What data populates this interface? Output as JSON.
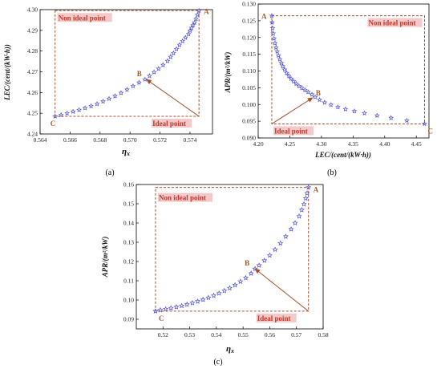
{
  "chart_data": [
    {
      "panel": "(a)",
      "type": "scatter",
      "title": "",
      "xlabel": "ηx",
      "ylabel": "LEC/(cent/(kW·h))",
      "xlim": [
        0.564,
        0.5755
      ],
      "ylim": [
        4.24,
        4.3
      ],
      "xticks": [
        "0.564",
        "0.566",
        "0.568",
        "0.570",
        "0.572",
        "0.574"
      ],
      "yticks": [
        "4.24",
        "4.25",
        "4.26",
        "4.27",
        "4.28",
        "4.29",
        "4.30"
      ],
      "marker": "star",
      "marker_color": "#4a4ad6",
      "frame_color": "#a0522d",
      "arrow_color": "#a0522d",
      "corner_labels": {
        "A": "A",
        "B": "B",
        "C": "C"
      },
      "non_ideal_label": "Non ideal point",
      "ideal_label": "Ideal point",
      "ideal_point": [
        0.5746,
        4.2485
      ],
      "point_B": [
        0.5711,
        4.2663
      ],
      "A": [
        0.5746,
        4.2995
      ],
      "C": [
        0.565,
        4.2485
      ],
      "x": [
        0.565,
        0.5654,
        0.5658,
        0.5662,
        0.5666,
        0.567,
        0.5674,
        0.5678,
        0.5682,
        0.5686,
        0.569,
        0.5694,
        0.5698,
        0.5702,
        0.5706,
        0.571,
        0.5713,
        0.5716,
        0.5719,
        0.5722,
        0.5725,
        0.5727,
        0.5729,
        0.5731,
        0.5733,
        0.5735,
        0.5737,
        0.5739,
        0.574,
        0.5741,
        0.5742,
        0.5743,
        0.5744,
        0.5745,
        0.5746
      ],
      "y": [
        4.2485,
        4.2492,
        4.25,
        4.2508,
        4.2516,
        4.2525,
        4.2535,
        4.2545,
        4.2557,
        4.257,
        4.2583,
        4.2598,
        4.2614,
        4.2631,
        4.2648,
        4.2663,
        4.268,
        4.2698,
        4.2715,
        4.2733,
        4.2752,
        4.2772,
        4.279,
        4.281,
        4.283,
        4.2848,
        4.2865,
        4.2882,
        4.2898,
        4.2912,
        4.2925,
        4.2938,
        4.2955,
        4.2975,
        4.2995
      ]
    },
    {
      "panel": "(b)",
      "type": "scatter",
      "title": "",
      "xlabel": "LEC/(cent/(kW·h))",
      "ylabel": "APR/(m²/kW)",
      "xlim": [
        4.2,
        4.47
      ],
      "ylim": [
        0.09,
        0.13
      ],
      "xticks": [
        "4.20",
        "4.25",
        "4.30",
        "4.35",
        "4.40",
        "4.45"
      ],
      "yticks": [
        "0.090",
        "0.095",
        "0.100",
        "0.105",
        "0.110",
        "0.115",
        "0.120",
        "0.125",
        "0.130"
      ],
      "marker": "star",
      "marker_color": "#4a4ad6",
      "frame_color": "#a0522d",
      "arrow_color": "#a0522d",
      "corner_labels": {
        "A": "A",
        "B": "B",
        "C": "C"
      },
      "non_ideal_label": "Non ideal point",
      "ideal_label": "Ideal point",
      "ideal_point": [
        4.2215,
        0.0942
      ],
      "point_B": [
        4.286,
        0.102
      ],
      "A": [
        4.2215,
        0.1265
      ],
      "C": [
        4.463,
        0.0942
      ],
      "x": [
        4.2215,
        4.222,
        4.2228,
        4.2238,
        4.225,
        4.2265,
        4.2282,
        4.23,
        4.232,
        4.2342,
        4.2365,
        4.239,
        4.2418,
        4.245,
        4.2485,
        4.252,
        4.256,
        4.26,
        4.2645,
        4.269,
        4.274,
        4.279,
        4.285,
        4.29,
        4.297,
        4.305,
        4.315,
        4.326,
        4.338,
        4.352,
        4.368,
        4.388,
        4.41,
        4.435,
        4.463
      ],
      "y": [
        0.1265,
        0.1245,
        0.1228,
        0.1212,
        0.1197,
        0.1183,
        0.117,
        0.1158,
        0.1146,
        0.1135,
        0.1124,
        0.1114,
        0.1104,
        0.1094,
        0.1085,
        0.1077,
        0.1069,
        0.1062,
        0.1055,
        0.1049,
        0.1043,
        0.1037,
        0.103,
        0.1022,
        0.1014,
        0.1006,
        0.0999,
        0.0992,
        0.0986,
        0.098,
        0.0974,
        0.0967,
        0.096,
        0.0952,
        0.0942
      ]
    },
    {
      "panel": "(c)",
      "type": "scatter",
      "title": "",
      "xlabel": "ηx",
      "ylabel": "APR/(m²/kW)",
      "xlim": [
        0.51,
        0.58
      ],
      "ylim": [
        0.085,
        0.16
      ],
      "xticks": [
        "0.52",
        "0.53",
        "0.54",
        "0.55",
        "0.56",
        "0.57",
        "0.58"
      ],
      "yticks": [
        "0.09",
        "0.10",
        "0.11",
        "0.12",
        "0.13",
        "0.14",
        "0.15",
        "0.16"
      ],
      "marker": "star",
      "marker_color": "#4a4ad6",
      "frame_color": "#a0522d",
      "arrow_color": "#a0522d",
      "corner_labels": {
        "A": "A",
        "B": "B",
        "C": "C"
      },
      "non_ideal_label": "Non ideal point",
      "ideal_label": "Ideal point",
      "ideal_point": [
        0.5745,
        0.0942
      ],
      "point_B": [
        0.5545,
        0.1162
      ],
      "A": [
        0.5745,
        0.1585
      ],
      "C": [
        0.5172,
        0.0942
      ],
      "x": [
        0.5172,
        0.519,
        0.521,
        0.523,
        0.525,
        0.527,
        0.529,
        0.531,
        0.533,
        0.535,
        0.537,
        0.539,
        0.541,
        0.543,
        0.545,
        0.547,
        0.549,
        0.551,
        0.553,
        0.5545,
        0.556,
        0.558,
        0.56,
        0.562,
        0.564,
        0.566,
        0.568,
        0.5695,
        0.571,
        0.572,
        0.5728,
        0.5735,
        0.574,
        0.5745
      ],
      "y": [
        0.0942,
        0.0948,
        0.0953,
        0.0958,
        0.0964,
        0.097,
        0.0977,
        0.0985,
        0.0993,
        0.1002,
        0.1012,
        0.1023,
        0.1035,
        0.1048,
        0.1062,
        0.1078,
        0.1096,
        0.1115,
        0.1138,
        0.1162,
        0.118,
        0.1205,
        0.1232,
        0.1262,
        0.1295,
        0.133,
        0.1368,
        0.14,
        0.1435,
        0.1468,
        0.1498,
        0.1528,
        0.1555,
        0.1585
      ]
    }
  ]
}
